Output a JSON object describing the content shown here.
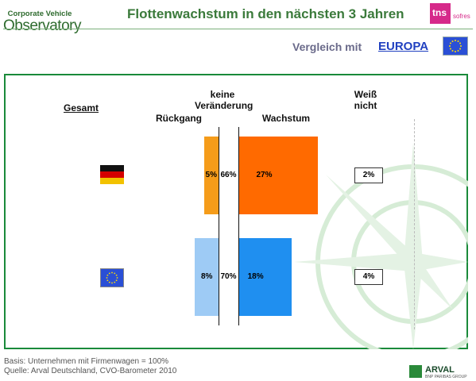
{
  "header": {
    "logo_line1": "Corporate Vehicle",
    "logo_line2": "Observatory",
    "title": "Flottenwachstum in den nächsten 3 Jahren",
    "tns_logo": "tns",
    "tns_sub": "sofres",
    "subtitle_prefix": "Vergleich mit",
    "subtitle_link": "EUROPA"
  },
  "chart_data": {
    "type": "bar",
    "orientation": "horizontal-diverging",
    "section_label": "Gesamt",
    "columns": {
      "rueckgang": "Rückgang",
      "keine": "keine Veränderung",
      "wachstum": "Wachstum",
      "weiss_nicht": "Weiß nicht"
    },
    "categories": [
      "Deutschland",
      "Europa"
    ],
    "category_icons": [
      "germany-flag-icon",
      "eu-flag-icon"
    ],
    "series": [
      {
        "name": "Rückgang",
        "values": [
          5,
          8
        ],
        "labels": [
          "5%",
          "8%"
        ],
        "colors": [
          "#f59c1a",
          "#9ecbf5"
        ]
      },
      {
        "name": "keine Veränderung",
        "values": [
          66,
          70
        ],
        "labels": [
          "66%",
          "70%"
        ]
      },
      {
        "name": "Wachstum",
        "values": [
          27,
          18
        ],
        "labels": [
          "27%",
          "18%"
        ],
        "colors": [
          "#ff6a00",
          "#1f8ff0"
        ]
      },
      {
        "name": "Weiß nicht",
        "values": [
          2,
          4
        ],
        "labels": [
          "2%",
          "4%"
        ]
      }
    ]
  },
  "footer": {
    "basis": "Basis: Unternehmen mit Firmenwagen = 100%",
    "source": "Quelle: Arval Deutschland, CVO-Barometer 2010",
    "arval": "ARVAL",
    "arval_sub": "BNP PARIBAS GROUP"
  }
}
